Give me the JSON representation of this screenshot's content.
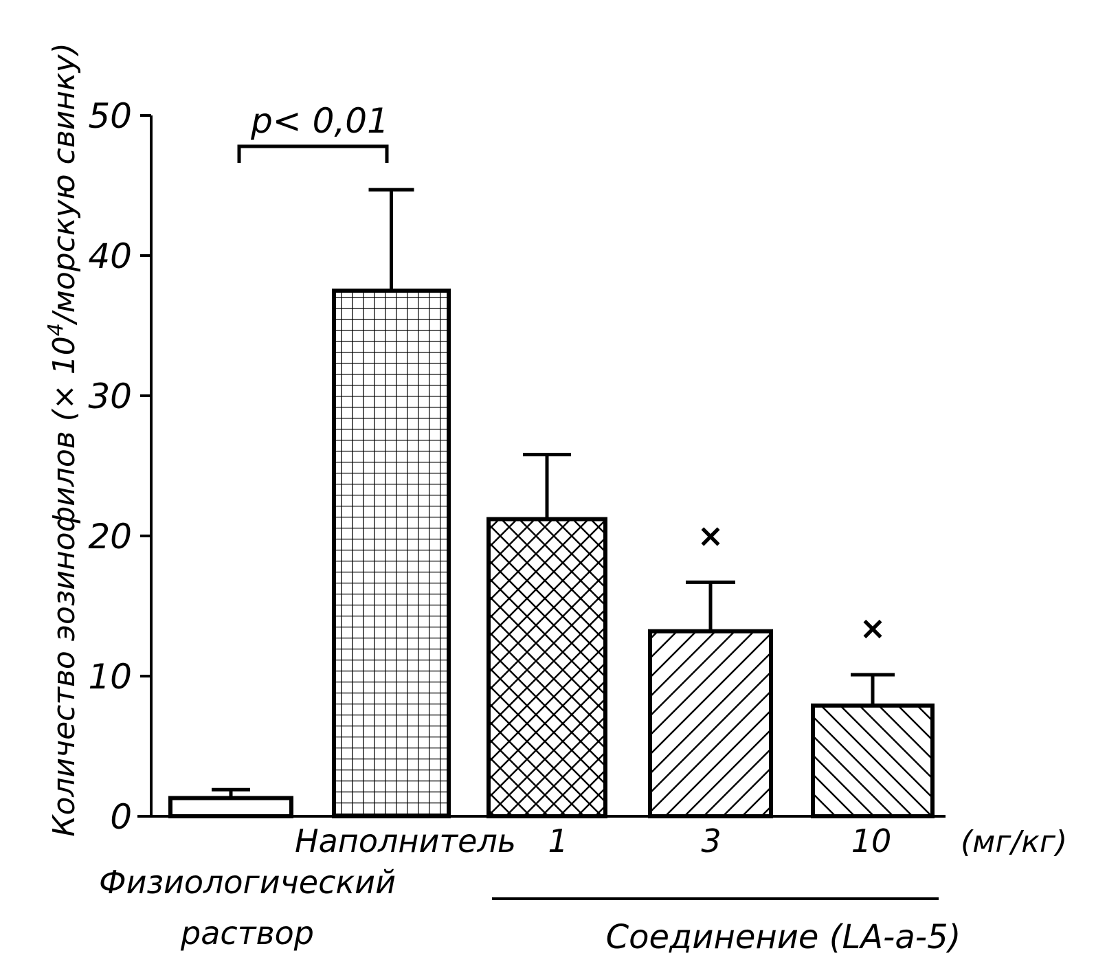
{
  "chart_data": {
    "type": "bar",
    "ylabel_main": "Количество эозинофилов (× 10",
    "ylabel_sup": "4",
    "ylabel_tail": "/морскую свинку)",
    "ylim": [
      0,
      50
    ],
    "yticks": [
      "0",
      "10",
      "20",
      "30",
      "40",
      "50"
    ],
    "ytick_values": [
      0,
      10,
      20,
      30,
      40,
      50
    ],
    "categories": [
      {
        "label_lines": [
          "Физиологический",
          "раствор"
        ],
        "value": 1.3,
        "error": 0.6,
        "pattern": "empty",
        "mark": ""
      },
      {
        "label_lines": [
          "Наполнитель"
        ],
        "value": 37.5,
        "error": 7.2,
        "pattern": "grid",
        "mark": ""
      },
      {
        "label_lines": [
          "1"
        ],
        "value": 21.2,
        "error": 4.6,
        "pattern": "crosshatch",
        "mark": ""
      },
      {
        "label_lines": [
          "3"
        ],
        "value": 13.2,
        "error": 3.5,
        "pattern": "diag-right",
        "mark": "×"
      },
      {
        "label_lines": [
          "10"
        ],
        "value": 7.9,
        "error": 2.2,
        "pattern": "diag-left",
        "mark": "×"
      }
    ],
    "unit_label": "(мг/кг)",
    "group_label": "Соединение (LA-a-5)",
    "significance": {
      "text": "p< 0,01",
      "from": 0,
      "to": 1
    },
    "grid": false,
    "legend": "none"
  }
}
